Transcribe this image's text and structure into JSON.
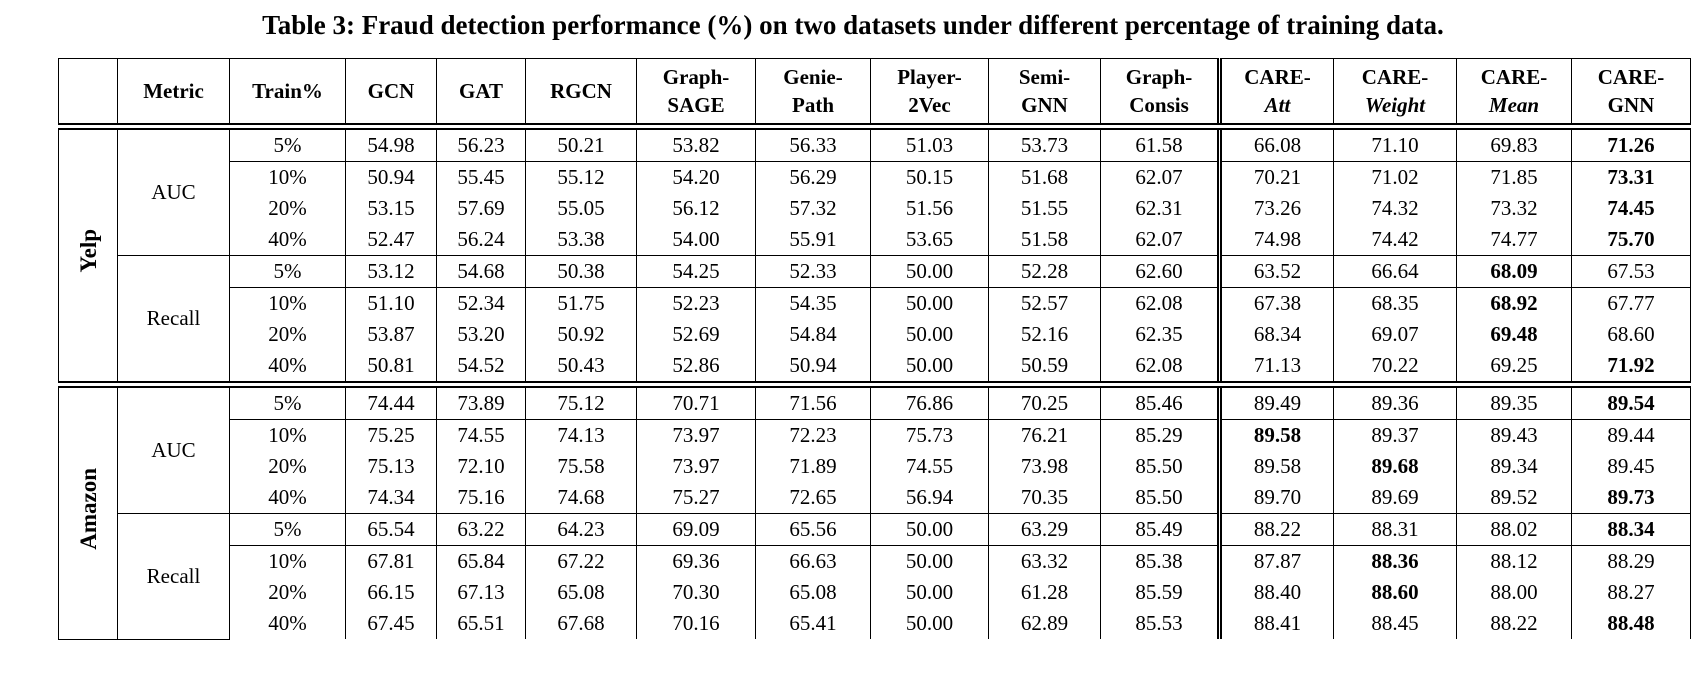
{
  "title": "Table 3: Fraud detection performance (%) on two datasets under different percentage of training data.",
  "split_before_column": 8,
  "columns": [
    {
      "lines": [
        "Metric"
      ]
    },
    {
      "lines": [
        "Train%"
      ]
    },
    {
      "lines": [
        "GCN"
      ]
    },
    {
      "lines": [
        "GAT"
      ]
    },
    {
      "lines": [
        "RGCN"
      ]
    },
    {
      "lines": [
        "Graph-",
        "SAGE"
      ]
    },
    {
      "lines": [
        "Genie-",
        "Path"
      ]
    },
    {
      "lines": [
        "Player-",
        "2Vec"
      ]
    },
    {
      "lines": [
        "Semi-",
        "GNN"
      ]
    },
    {
      "lines": [
        "Graph-",
        "Consis"
      ]
    },
    {
      "lines": [
        "CARE-",
        "Att"
      ],
      "italic_line": 1
    },
    {
      "lines": [
        "CARE-",
        "Weight"
      ],
      "italic_line": 1
    },
    {
      "lines": [
        "CARE-",
        "Mean"
      ],
      "italic_line": 1
    },
    {
      "lines": [
        "CARE-",
        "GNN"
      ]
    }
  ],
  "datasets": [
    {
      "name": "Yelp",
      "metrics": [
        {
          "name": "AUC",
          "rows": [
            {
              "train": "5%",
              "values": [
                "54.98",
                "56.23",
                "50.21",
                "53.82",
                "56.33",
                "51.03",
                "53.73",
                "61.58",
                "66.08",
                "71.10",
                "69.83",
                "71.26"
              ],
              "bold": 11
            },
            {
              "train": "10%",
              "values": [
                "50.94",
                "55.45",
                "55.12",
                "54.20",
                "56.29",
                "50.15",
                "51.68",
                "62.07",
                "70.21",
                "71.02",
                "71.85",
                "73.31"
              ],
              "bold": 11
            },
            {
              "train": "20%",
              "values": [
                "53.15",
                "57.69",
                "55.05",
                "56.12",
                "57.32",
                "51.56",
                "51.55",
                "62.31",
                "73.26",
                "74.32",
                "73.32",
                "74.45"
              ],
              "bold": 11
            },
            {
              "train": "40%",
              "values": [
                "52.47",
                "56.24",
                "53.38",
                "54.00",
                "55.91",
                "53.65",
                "51.58",
                "62.07",
                "74.98",
                "74.42",
                "74.77",
                "75.70"
              ],
              "bold": 11
            }
          ]
        },
        {
          "name": "Recall",
          "rows": [
            {
              "train": "5%",
              "values": [
                "53.12",
                "54.68",
                "50.38",
                "54.25",
                "52.33",
                "50.00",
                "52.28",
                "62.60",
                "63.52",
                "66.64",
                "68.09",
                "67.53"
              ],
              "bold": 10
            },
            {
              "train": "10%",
              "values": [
                "51.10",
                "52.34",
                "51.75",
                "52.23",
                "54.35",
                "50.00",
                "52.57",
                "62.08",
                "67.38",
                "68.35",
                "68.92",
                "67.77"
              ],
              "bold": 10
            },
            {
              "train": "20%",
              "values": [
                "53.87",
                "53.20",
                "50.92",
                "52.69",
                "54.84",
                "50.00",
                "52.16",
                "62.35",
                "68.34",
                "69.07",
                "69.48",
                "68.60"
              ],
              "bold": 10
            },
            {
              "train": "40%",
              "values": [
                "50.81",
                "54.52",
                "50.43",
                "52.86",
                "50.94",
                "50.00",
                "50.59",
                "62.08",
                "71.13",
                "70.22",
                "69.25",
                "71.92"
              ],
              "bold": 11
            }
          ]
        }
      ]
    },
    {
      "name": "Amazon",
      "metrics": [
        {
          "name": "AUC",
          "rows": [
            {
              "train": "5%",
              "values": [
                "74.44",
                "73.89",
                "75.12",
                "70.71",
                "71.56",
                "76.86",
                "70.25",
                "85.46",
                "89.49",
                "89.36",
                "89.35",
                "89.54"
              ],
              "bold": 11
            },
            {
              "train": "10%",
              "values": [
                "75.25",
                "74.55",
                "74.13",
                "73.97",
                "72.23",
                "75.73",
                "76.21",
                "85.29",
                "89.58",
                "89.37",
                "89.43",
                "89.44"
              ],
              "bold": 8
            },
            {
              "train": "20%",
              "values": [
                "75.13",
                "72.10",
                "75.58",
                "73.97",
                "71.89",
                "74.55",
                "73.98",
                "85.50",
                "89.58",
                "89.68",
                "89.34",
                "89.45"
              ],
              "bold": 9
            },
            {
              "train": "40%",
              "values": [
                "74.34",
                "75.16",
                "74.68",
                "75.27",
                "72.65",
                "56.94",
                "70.35",
                "85.50",
                "89.70",
                "89.69",
                "89.52",
                "89.73"
              ],
              "bold": 11
            }
          ]
        },
        {
          "name": "Recall",
          "rows": [
            {
              "train": "5%",
              "values": [
                "65.54",
                "63.22",
                "64.23",
                "69.09",
                "65.56",
                "50.00",
                "63.29",
                "85.49",
                "88.22",
                "88.31",
                "88.02",
                "88.34"
              ],
              "bold": 11
            },
            {
              "train": "10%",
              "values": [
                "67.81",
                "65.84",
                "67.22",
                "69.36",
                "66.63",
                "50.00",
                "63.32",
                "85.38",
                "87.87",
                "88.36",
                "88.12",
                "88.29"
              ],
              "bold": 9
            },
            {
              "train": "20%",
              "values": [
                "66.15",
                "67.13",
                "65.08",
                "70.30",
                "65.08",
                "50.00",
                "61.28",
                "85.59",
                "88.40",
                "88.60",
                "88.00",
                "88.27"
              ],
              "bold": 9
            },
            {
              "train": "40%",
              "values": [
                "67.45",
                "65.51",
                "67.68",
                "70.16",
                "65.41",
                "50.00",
                "62.89",
                "85.53",
                "88.41",
                "88.45",
                "88.22",
                "88.48"
              ],
              "bold": 11
            }
          ]
        }
      ]
    }
  ]
}
